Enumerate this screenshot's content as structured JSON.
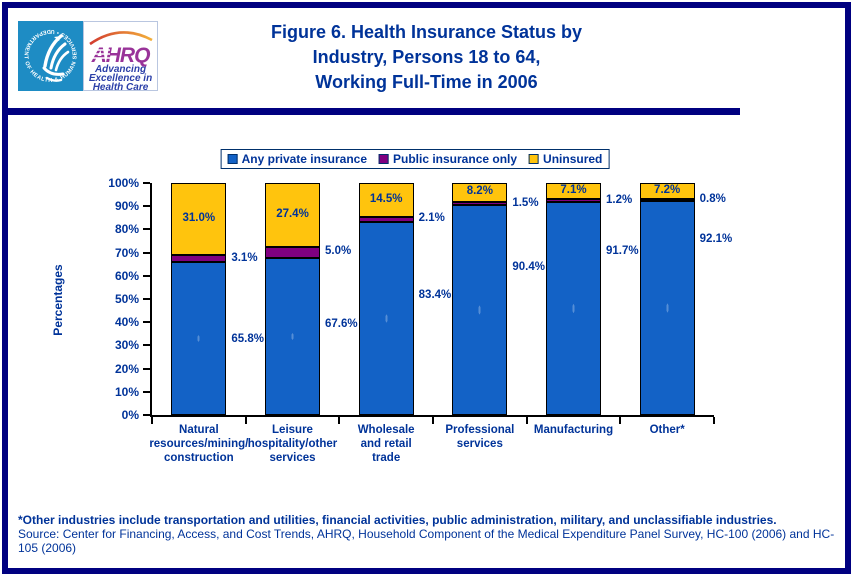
{
  "header": {
    "hhs_ring_text": "DEPARTMENT OF HEALTH & HUMAN SERVICES • USA",
    "ahrq_acronym": "AHRQ",
    "ahrq_tagline_lines": [
      "Advancing",
      "Excellence in",
      "Health Care"
    ],
    "title_lines": [
      "Figure 6. Health Insurance Status by",
      "Industry, Persons 18 to 64,",
      "Working Full-Time in 2006"
    ]
  },
  "chart_data": {
    "type": "bar",
    "stacked": true,
    "title": "Figure 6. Health Insurance Status by Industry, Persons 18 to 64, Working Full-Time in 2006",
    "ylabel": "Percentages",
    "ylim": [
      0,
      100
    ],
    "ytick_step": 10,
    "ytick_suffix": "%",
    "grid": false,
    "legend_position": "top-center",
    "categories": [
      "Natural resources/mining/ construction",
      "Leisure hospitality/other services",
      "Wholesale and retail trade",
      "Professional services",
      "Manufacturing",
      "Other*"
    ],
    "category_lines": [
      [
        "Natural",
        "resources/mining/",
        "construction"
      ],
      [
        "Leisure",
        "hospitality/other",
        "services"
      ],
      [
        "Wholesale",
        "and retail",
        "trade"
      ],
      [
        "Professional",
        "services"
      ],
      [
        "Manufacturing"
      ],
      [
        "Other*"
      ]
    ],
    "series": [
      {
        "name": "Any private insurance",
        "color": "#1362C6",
        "values": [
          65.8,
          67.6,
          83.4,
          90.4,
          91.7,
          92.1
        ]
      },
      {
        "name": "Public insurance only",
        "color": "#800080",
        "values": [
          3.1,
          5.0,
          2.1,
          1.5,
          1.2,
          0.8
        ]
      },
      {
        "name": "Uninsured",
        "color": "#FFC40D",
        "values": [
          31.0,
          27.4,
          14.5,
          8.2,
          7.1,
          7.2
        ]
      }
    ]
  },
  "footnotes": {
    "other_note": "*Other industries include transportation and utilities, financial activities, public administration, military, and unclassifiable industries.",
    "source": "Source: Center for Financing, Access, and Cost Trends, AHRQ, Household Component of the Medical Expenditure Panel Survey, HC-100 (2006) and HC-105 (2006)"
  },
  "colors": {
    "page_border_navy": "#000080",
    "title_navy": "#003399",
    "bar_blue": "#1362C6",
    "bar_purple": "#800080",
    "bar_yellow": "#FFC40D",
    "hhs_logo_blue": "#1E8CC4",
    "ahrq_purple": "#993399",
    "ahrq_tagline_blue": "#2B3FA8"
  }
}
